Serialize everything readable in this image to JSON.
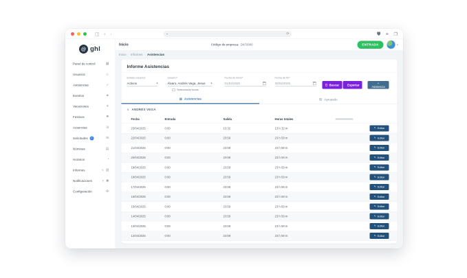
{
  "logo": {
    "text": "ghl"
  },
  "topbar": {
    "section_title": "Inicio",
    "company_code_label": "Código de empresa:",
    "company_code_value": "DKF0090",
    "entry_button": "ENTRADA"
  },
  "breadcrumb": [
    "Inicio",
    "Informes",
    "Asistencias"
  ],
  "sidebar": {
    "items": [
      {
        "label": "Panel de control",
        "icon": "dashboard-icon",
        "glyph": "▦"
      },
      {
        "label": "Usuarios",
        "icon": "users-icon",
        "glyph": "☺"
      },
      {
        "label": "Asistencias",
        "icon": "attendance-icon",
        "glyph": "✓"
      },
      {
        "label": "Eventos",
        "icon": "events-icon",
        "glyph": "★"
      },
      {
        "label": "Vacaciones",
        "icon": "vacations-icon",
        "glyph": "☀"
      },
      {
        "label": "Festivos",
        "icon": "holidays-icon",
        "glyph": "⚑"
      },
      {
        "label": "Ausencias",
        "icon": "absences-icon",
        "glyph": "⊘"
      },
      {
        "label": "Solicitudes",
        "icon": "requests-icon",
        "glyph": "✉",
        "badge": "1"
      },
      {
        "label": "Nóminas",
        "icon": "payroll-icon",
        "glyph": "▤"
      },
      {
        "label": "Horarios",
        "icon": "schedules-icon",
        "glyph": "◔"
      },
      {
        "label": "Informes",
        "icon": "reports-icon",
        "glyph": "▥",
        "chevron": true
      },
      {
        "label": "Notificaciones",
        "icon": "notifications-icon",
        "glyph": "◉",
        "chevron": true
      },
      {
        "label": "Configuración",
        "icon": "settings-icon",
        "glyph": "⚙"
      }
    ]
  },
  "page": {
    "title": "Informe Asistencias"
  },
  "filters": {
    "estado": {
      "label": "Estado usuarios",
      "value": "Activos"
    },
    "usuario": {
      "label": "Usuario*",
      "value": "Álvaro, Andrés Vega, Jesus"
    },
    "select_all_label": "Seleccionar todos",
    "fecha_inicio": {
      "label": "Fecha de inicio*",
      "value": "01/04/2025"
    },
    "fecha_fin": {
      "label": "Fecha de fin*",
      "value": "30/04/2025"
    },
    "buscar_button": "Buscar",
    "exportar_button": "Exportar",
    "asistencia_button": "+ Asistencia"
  },
  "tabs": [
    {
      "label": "Asistencias",
      "active": true
    },
    {
      "label": "Agrupado",
      "active": false
    }
  ],
  "group_header": "ANDRÉS VEGA",
  "table": {
    "headers": [
      "Fecha",
      "Entrada",
      "Salida",
      "Horas totales"
    ],
    "edit_label": "Editar",
    "rows": [
      {
        "fecha": "23/04/2025",
        "entrada": "0:00",
        "salida": "13:32",
        "horas": "13 h 32 m"
      },
      {
        "fecha": "22/04/2025",
        "entrada": "0:00",
        "salida": "23:59",
        "horas": "23 h 59 m"
      },
      {
        "fecha": "21/04/2025",
        "entrada": "0:00",
        "salida": "23:59",
        "horas": "23 h 59 m"
      },
      {
        "fecha": "20/04/2025",
        "entrada": "0:00",
        "salida": "23:59",
        "horas": "23 h 59 m"
      },
      {
        "fecha": "19/04/2025",
        "entrada": "0:00",
        "salida": "23:59",
        "horas": "23 h 59 m"
      },
      {
        "fecha": "18/04/2025",
        "entrada": "0:00",
        "salida": "23:59",
        "horas": "23 h 59 m"
      },
      {
        "fecha": "17/04/2025",
        "entrada": "0:00",
        "salida": "23:59",
        "horas": "23 h 59 m"
      },
      {
        "fecha": "16/04/2025",
        "entrada": "0:00",
        "salida": "23:59",
        "horas": "23 h 59 m"
      },
      {
        "fecha": "15/04/2025",
        "entrada": "0:00",
        "salida": "23:59",
        "horas": "23 h 59 m"
      },
      {
        "fecha": "14/04/2025",
        "entrada": "0:00",
        "salida": "23:59",
        "horas": "23 h 59 m"
      },
      {
        "fecha": "13/04/2025",
        "entrada": "0:00",
        "salida": "23:59",
        "horas": "23 h 59 m"
      },
      {
        "fecha": "12/04/2025",
        "entrada": "0:00",
        "salida": "23:59",
        "horas": "23 h 59 m"
      }
    ]
  },
  "colors": {
    "accent_purple": "#7c22dc",
    "entry_green": "#2fc161",
    "edit_navy": "#235179",
    "add_slate": "#416d8e",
    "tab_blue": "#4a7bad",
    "badge_blue": "#3b82f6"
  }
}
